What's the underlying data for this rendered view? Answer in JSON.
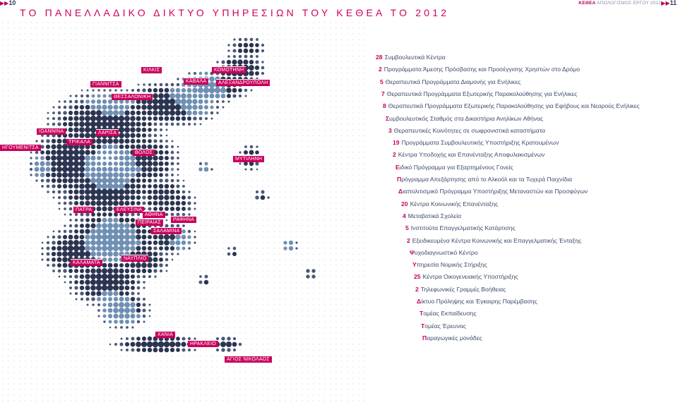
{
  "header": {
    "left_page": "10",
    "right_page": "11",
    "right_brand": "ΚΕΘΕΑ",
    "right_text": "ΑΠΟΛΟΓΙΣΜΟΣ ΕΡΓΟΥ 2012",
    "title": "ΤΟ ΠΑΝΕΛΛΑΔΙΚΟ ΔΙΚΤΥΟ ΥΠΗΡΕΣΙΩΝ ΤΟΥ ΚΕΘΕΑ ΤΟ 2012"
  },
  "map": {
    "cities": [
      "ΚΙΛΚΙΣ",
      "ΚΟΜΟΤΗΝΗ",
      "ΓΙΑΝΝΙΤΣΑ",
      "ΚΑΒΑΛΑ",
      "ΑΛΕΞΑΝΔΡΟΥΠΟΛΗ",
      "ΘΕΣΣΑΛΟΝΙΚΗ",
      "ΙΩΑΝΝΙΝΑ",
      "ΛΑΡΙΣΑ",
      "ΗΓΟΥΜΕΝΙΤΣΑ",
      "ΤΡΙΚΑΛΑ",
      "ΒΟΛΟΣ",
      "ΜΥΤΙΛΗΝΗ",
      "ΠΑΤΡΑ",
      "ΕΛΕΥΣΙΝΑ",
      "ΑΘΗΝΑ",
      "ΡΑΦΗΝΑ",
      "ΠΕΙΡΑΙΑΣ",
      "ΣΑΛΑΜΙΝΑ",
      "ΚΑΛΑΜΑΤΑ",
      "ΝΑΥΠΛΙΟ",
      "ΧΑΝΙΑ",
      "ΗΡΑΚΛΕΙΟ",
      "ΑΓΙΟΣ ΝΙΚΟΛΑΟΣ"
    ]
  },
  "services": [
    {
      "num": "28",
      "text": "Συμβουλευτικά Κέντρα"
    },
    {
      "num": "2",
      "text": "Προγράμματα Άμεσης Πρόσβασης και Προσέγγισης Χρηστών στο Δρόμο"
    },
    {
      "num": "5",
      "text": "Θεραπευτικά Προγράμματα Διαμονής για Ενήλικες"
    },
    {
      "num": "7",
      "text": "Θεραπευτικά Προγράμματα Εξωτερικής Παρακολούθησης για Ενήλικες"
    },
    {
      "num": "8",
      "text": "Θεραπευτικά Προγράμματα Εξωτερικής Παρακολούθησης για Εφήβους και Νεαρούς Ενήλικες"
    },
    {
      "num": "",
      "first": "Σ",
      "text": "υμβουλευτικός Σταθμός στα Δικαστήρια Ανηλίκων Αθήνας"
    },
    {
      "num": "3",
      "text": "Θεραπευτικές Κοινότητες σε σωφρονιστικά καταστήματα"
    },
    {
      "num": "19",
      "text": "Προγράμματα Συμβουλευτικής Υποστήριξης Κρατουμένων"
    },
    {
      "num": "2",
      "text": "Κέντρα Υποδοχής και Επανένταξης Αποφυλακισμένων"
    },
    {
      "num": "",
      "first": "Ε",
      "text": "ιδικό Πρόγραμμα για Εξαρτημένους Γονείς"
    },
    {
      "num": "",
      "first": "Π",
      "text": "ρόγραμμα Απεξάρτησης από το Αλκοόλ και τα Τυχερά Παιχνίδια"
    },
    {
      "num": "",
      "first": "Δ",
      "text": "ιαπολιτισμικό Πρόγραμμα Υποστήριξης Μεταναστών και Προσφύγων"
    },
    {
      "num": "20",
      "text": "Κέντρα Κοινωνικής Επανένταξης"
    },
    {
      "num": "4",
      "text": "Μεταβατικά Σχολεία"
    },
    {
      "num": "5",
      "text": "Ινστιτούτα Επαγγελματικής Κατάρτισης"
    },
    {
      "num": "2",
      "text": "Εξειδικευμένα Κέντρα Κοινωνικής και Επαγγελματικής Ένταξης"
    },
    {
      "num": "",
      "first": "Ψ",
      "text": "υχοδιαγνωστικό Κέντρο"
    },
    {
      "num": "",
      "first": "Υ",
      "text": "πηρεσία Νομικής Στήριξης"
    },
    {
      "num": "25",
      "text": "Κέντρα Οικογενειακής Υποστήριξης"
    },
    {
      "num": "2",
      "text": "Τηλεφωνικές Γραμμές Βοήθειας"
    },
    {
      "num": "",
      "first": "Δ",
      "text": "ίκτυο Πρόληψης και Έγκαιρης Παρέμβασης"
    },
    {
      "num": "",
      "first": "Τ",
      "text": "ομέας Εκπαίδευσης"
    },
    {
      "num": "",
      "first": "Τ",
      "text": "ομέας Έρευνας"
    },
    {
      "num": "",
      "first": "Π",
      "text": "αραγωγικές μονάδες"
    }
  ],
  "colors": {
    "accent": "#c8005b",
    "text": "#3c4a6b",
    "map_dark": "#2b3450",
    "map_blue": "#6f8fb3"
  }
}
